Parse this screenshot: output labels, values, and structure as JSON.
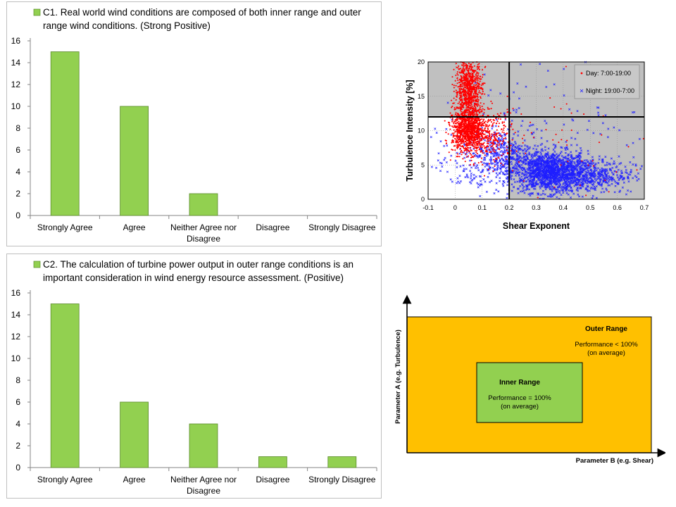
{
  "colors": {
    "bar_fill": "#92d050",
    "bar_stroke": "#5a8a2a",
    "scatter_bg": "#c0c0c0",
    "day_points": "#ff0000",
    "night_points": "#1f1fff",
    "outer_range": "#ffc000",
    "inner_range": "#92d050"
  },
  "chart_data": [
    {
      "id": "c1",
      "type": "bar",
      "legend_line1": "C1. Real world wind conditions are composed of both inner range and outer",
      "legend_line2": "range wind conditions. (Strong Positive)",
      "categories": [
        "Strongly Agree",
        "Agree",
        "Neither Agree nor Disagree",
        "Disagree",
        "Strongly Disagree"
      ],
      "category_lines": [
        [
          "Strongly Agree"
        ],
        [
          "Agree"
        ],
        [
          "Neither Agree nor",
          "Disagree"
        ],
        [
          "Disagree"
        ],
        [
          "Strongly Disagree"
        ]
      ],
      "values": [
        15,
        10,
        2,
        0,
        0
      ],
      "ylim": [
        0,
        16
      ],
      "yticks": [
        "0",
        "2",
        "4",
        "6",
        "8",
        "10",
        "12",
        "14",
        "16"
      ],
      "grid": true,
      "legend_position": "top"
    },
    {
      "id": "c2",
      "type": "bar",
      "legend_line1": "C2. The calculation of turbine power output in outer range conditions is an",
      "legend_line2": "important consideration in wind energy resource assessment. (Positive)",
      "categories": [
        "Strongly Agree",
        "Agree",
        "Neither Agree nor Disagree",
        "Disagree",
        "Strongly Disagree"
      ],
      "category_lines": [
        [
          "Strongly Agree"
        ],
        [
          "Agree"
        ],
        [
          "Neither Agree nor",
          "Disagree"
        ],
        [
          "Disagree"
        ],
        [
          "Strongly Disagree"
        ]
      ],
      "values": [
        15,
        6,
        4,
        1,
        1
      ],
      "ylim": [
        0,
        16
      ],
      "yticks": [
        "0",
        "2",
        "4",
        "6",
        "8",
        "10",
        "12",
        "14",
        "16"
      ],
      "grid": true,
      "legend_position": "top"
    },
    {
      "id": "scatter",
      "type": "scatter",
      "xlabel": "Shear Exponent",
      "ylabel": "Turbulence Intensity [%]",
      "xlim": [
        -0.1,
        0.7
      ],
      "ylim": [
        0,
        20
      ],
      "xticks": [
        "-0.1",
        "0",
        "0.1",
        "0.2",
        "0.3",
        "0.4",
        "0.5",
        "0.6",
        "0.7"
      ],
      "yticks": [
        "0",
        "5",
        "10",
        "15",
        "20"
      ],
      "divider_x": 0.2,
      "divider_y": 12,
      "grid": true,
      "legend_position": "top-right",
      "series": [
        {
          "name": "Day: 7:00-19:00",
          "marker": "dot",
          "clusters": [
            {
              "cx": 0.05,
              "cy": 10,
              "sx": 0.03,
              "sy": 1.6,
              "n": 1100
            },
            {
              "cx": 0.05,
              "cy": 16,
              "sx": 0.025,
              "sy": 2.4,
              "n": 900
            },
            {
              "cx": 0.14,
              "cy": 9,
              "sx": 0.04,
              "sy": 2,
              "n": 250
            },
            {
              "cx": 0.4,
              "cy": 8,
              "sx": 0.15,
              "sy": 5,
              "n": 60
            }
          ]
        },
        {
          "name": "Night: 19:00-7:00",
          "marker": "x",
          "clusters": [
            {
              "cx": 0.35,
              "cy": 4,
              "sx": 0.07,
              "sy": 1.5,
              "n": 1400
            },
            {
              "cx": 0.5,
              "cy": 3.5,
              "sx": 0.08,
              "sy": 1.3,
              "n": 500
            },
            {
              "cx": 0.17,
              "cy": 6.5,
              "sx": 0.05,
              "sy": 1.8,
              "n": 350
            },
            {
              "cx": 0.05,
              "cy": 5,
              "sx": 0.06,
              "sy": 2.5,
              "n": 120
            },
            {
              "cx": 0.35,
              "cy": 11,
              "sx": 0.2,
              "sy": 4,
              "n": 120
            }
          ]
        }
      ]
    }
  ],
  "diagram": {
    "outer_title": "Outer Range",
    "outer_text1": "Performance < 100%",
    "outer_text2": "(on average)",
    "inner_title": "Inner Range",
    "inner_text1": "Performance = 100%",
    "inner_text2": "(on average)",
    "xlabel": "Parameter B (e.g. Shear)",
    "ylabel": "Parameter A (e.g. Turbulence)"
  }
}
